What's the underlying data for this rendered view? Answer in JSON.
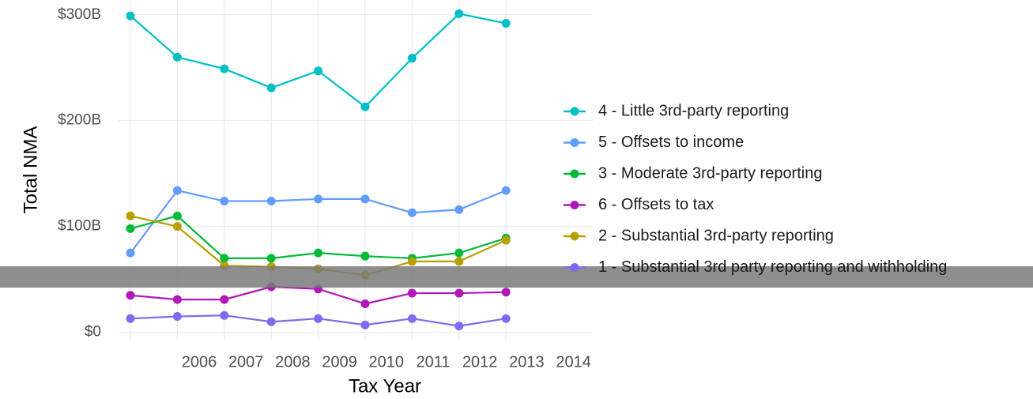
{
  "chart_data": {
    "type": "line",
    "x_label": "Tax Year",
    "y_label": "Total NMA",
    "categories": [
      "2006",
      "2007",
      "2008",
      "2009",
      "2010",
      "2011",
      "2012",
      "2013",
      "2014"
    ],
    "series": [
      {
        "name": "4 - Little 3rd-party reporting",
        "color": "#00bfc4",
        "values": [
          299,
          260,
          249,
          231,
          247,
          213,
          259,
          301,
          292
        ]
      },
      {
        "name": "5 - Offsets to income",
        "color": "#619cff",
        "values": [
          75,
          134,
          124,
          124,
          126,
          126,
          113,
          116,
          134
        ]
      },
      {
        "name": "3 - Moderate 3rd-party reporting",
        "color": "#00ba38",
        "values": [
          98,
          110,
          70,
          70,
          75,
          72,
          70,
          75,
          89
        ]
      },
      {
        "name": "6 - Offsets to tax",
        "color": "#b018b8",
        "values": [
          35,
          31,
          31,
          43,
          41,
          27,
          37,
          37,
          38
        ]
      },
      {
        "name": "2 - Substantial 3rd-party reporting",
        "color": "#b79f00",
        "values": [
          110,
          100,
          63,
          62,
          60,
          54,
          67,
          67,
          87
        ]
      },
      {
        "name": "1 - Substantial 3rd party reporting and withholding",
        "color": "#7b6cf0",
        "values": [
          13,
          15,
          16,
          10,
          13,
          7,
          13,
          6,
          13
        ]
      }
    ],
    "ylim": [
      -7,
      314
    ],
    "yticks": [
      {
        "value": 0,
        "label": "$0"
      },
      {
        "value": 100,
        "label": "$100B"
      },
      {
        "value": 200,
        "label": "$200B"
      },
      {
        "value": 300,
        "label": "$300B"
      }
    ],
    "grid": true,
    "legend": "right"
  }
}
